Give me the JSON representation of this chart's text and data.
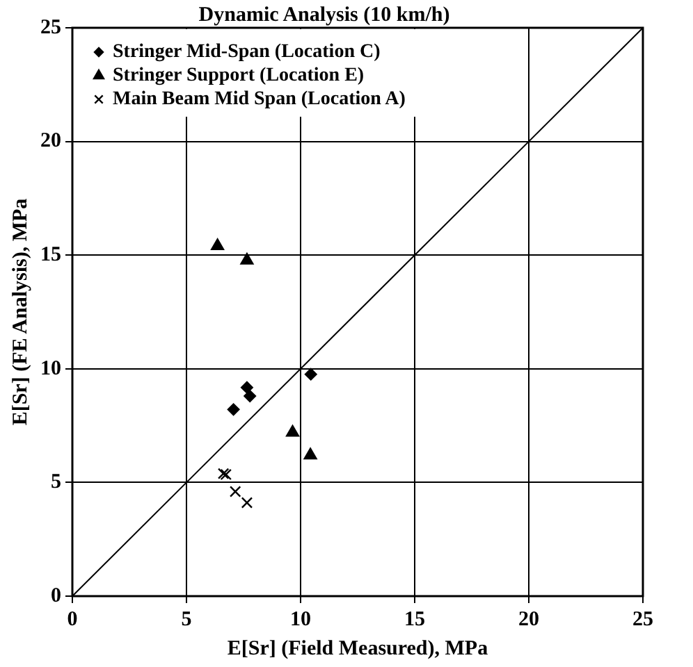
{
  "chart_data": {
    "type": "scatter",
    "title": "Dynamic Analysis (10 km/h)",
    "xlabel": "E[Sr] (Field Measured), MPa",
    "ylabel": "E[Sr] (FE Analysis), MPa",
    "xlim": [
      0,
      25
    ],
    "ylim": [
      0,
      25
    ],
    "xticks": [
      0,
      5,
      10,
      15,
      20,
      25
    ],
    "yticks": [
      0,
      5,
      10,
      15,
      20,
      25
    ],
    "grid": true,
    "legend": "top left",
    "series": [
      {
        "name": "Stringer Mid-Span (Location C)",
        "color": "#000000",
        "marker": "diamond",
        "x": [
          7.65,
          7.78,
          7.06,
          10.45
        ],
        "values": [
          9.18,
          8.8,
          8.21,
          9.76
        ]
      },
      {
        "name": "Stringer Support (Location E)",
        "color": "#000000",
        "marker": "triangle",
        "x": [
          6.36,
          7.65,
          9.65,
          10.43
        ],
        "values": [
          15.4,
          14.77,
          7.2,
          6.2
        ]
      },
      {
        "name": "Main Beam Mid Span (Location A)",
        "color": "#000000",
        "marker": "cross",
        "x": [
          6.62,
          6.73,
          7.14,
          7.65
        ],
        "values": [
          5.39,
          5.35,
          4.6,
          4.11
        ]
      },
      {
        "type": "line",
        "color": "#000000",
        "marker": "none",
        "x": [
          0,
          25
        ],
        "values": [
          0,
          25
        ]
      }
    ]
  }
}
